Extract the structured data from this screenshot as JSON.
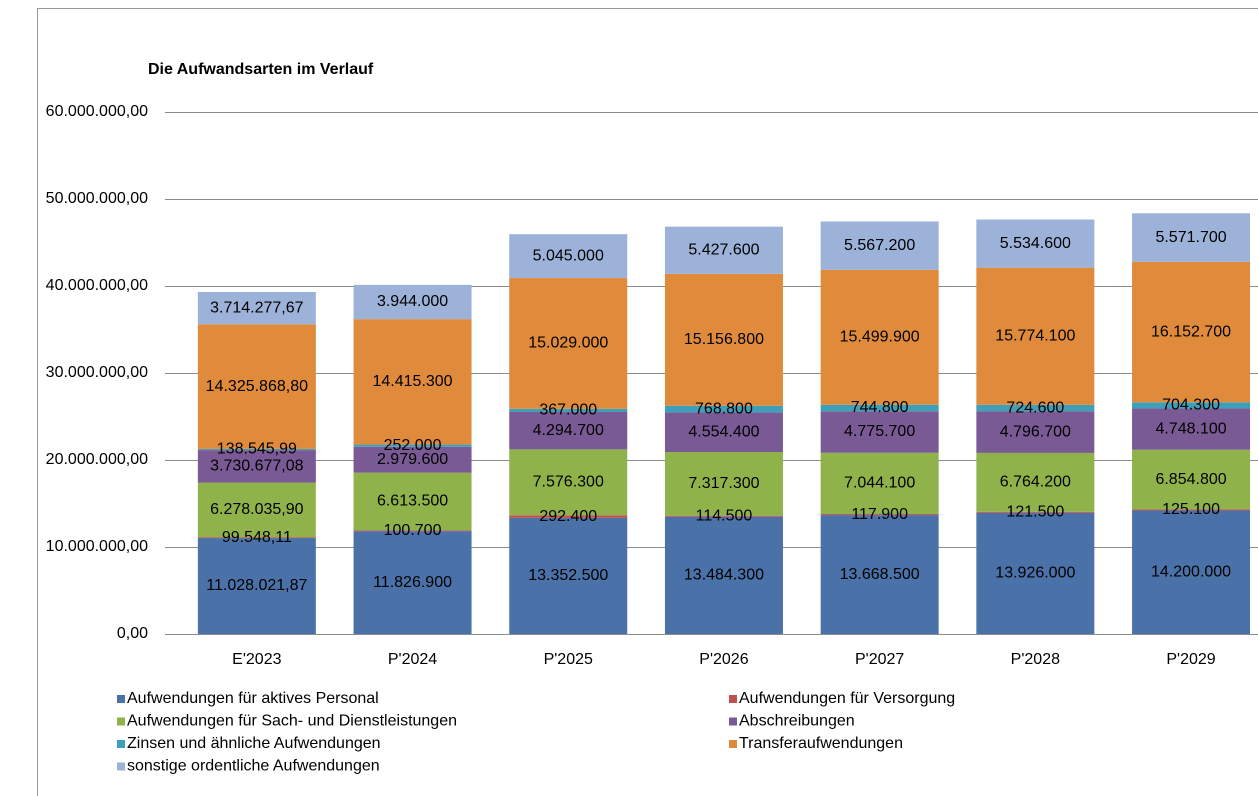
{
  "chart_data": {
    "type": "stacked_bar",
    "title": "Die Aufwandsarten im Verlauf",
    "categories": [
      "E'2023",
      "P'2024",
      "P'2025",
      "P'2026",
      "P'2027",
      "P'2028",
      "P'2029"
    ],
    "ylim": [
      0,
      60000000
    ],
    "yticks": [
      {
        "value": 0,
        "label": "0,00"
      },
      {
        "value": 10000000,
        "label": "10.000.000,00"
      },
      {
        "value": 20000000,
        "label": "20.000.000,00"
      },
      {
        "value": 30000000,
        "label": "30.000.000,00"
      },
      {
        "value": 40000000,
        "label": "40.000.000,00"
      },
      {
        "value": 50000000,
        "label": "50.000.000,00"
      },
      {
        "value": 60000000,
        "label": "60.000.000,00"
      }
    ],
    "grid": true,
    "series": [
      {
        "name": "Aufwendungen für aktives Personal",
        "color": "#4a72a8",
        "values": [
          11028021.87,
          11826900,
          13352500,
          13484300,
          13668500,
          13926000,
          14200000
        ],
        "value_labels": [
          "11.028.021,87",
          "11.826.900",
          "13.352.500",
          "13.484.300",
          "13.668.500",
          "13.926.000",
          "14.200.000"
        ]
      },
      {
        "name": "Aufwendungen für Versorgung",
        "color": "#c0504d",
        "values": [
          99548.11,
          100700,
          292400,
          114500,
          117900,
          121500,
          125100
        ],
        "value_labels": [
          "99.548,11",
          "100.700",
          "292.400",
          "114.500",
          "117.900",
          "121.500",
          "125.100"
        ]
      },
      {
        "name": "Aufwendungen für Sach- und Dienstleistungen",
        "color": "#8fb34a",
        "values": [
          6278035.9,
          6613500,
          7576300,
          7317300,
          7044100,
          6764200,
          6854800
        ],
        "value_labels": [
          "6.278.035,90",
          "6.613.500",
          "7.576.300",
          "7.317.300",
          "7.044.100",
          "6.764.200",
          "6.854.800"
        ]
      },
      {
        "name": "Abschreibungen",
        "color": "#7a5a94",
        "values": [
          3730677.08,
          2979600,
          4294700,
          4554400,
          4775700,
          4796700,
          4748100
        ],
        "value_labels": [
          "3.730.677,08",
          "2.979.600",
          "4.294.700",
          "4.554.400",
          "4.775.700",
          "4.796.700",
          "4.748.100"
        ]
      },
      {
        "name": "Zinsen und ähnliche Aufwendungen",
        "color": "#3ea0b8",
        "values": [
          138545.99,
          252000,
          367000,
          768800,
          744800,
          724600,
          704300
        ],
        "value_labels": [
          "138.545,99",
          "252.000",
          "367.000",
          "768.800",
          "744.800",
          "724.600",
          "704.300"
        ]
      },
      {
        "name": "Transferaufwendungen",
        "color": "#e08a3c",
        "values": [
          14325868.8,
          14415300,
          15029000,
          15156800,
          15499900,
          15774100,
          16152700
        ],
        "value_labels": [
          "14.325.868,80",
          "14.415.300",
          "15.029.000",
          "15.156.800",
          "15.499.900",
          "15.774.100",
          "16.152.700"
        ]
      },
      {
        "name": "sonstige ordentliche Aufwendungen",
        "color": "#9cb2d8",
        "values": [
          3714277.67,
          3944000,
          5045000,
          5427600,
          5567200,
          5534600,
          5571700
        ],
        "value_labels": [
          "3.714.277,67",
          "3.944.000",
          "5.045.000",
          "5.427.600",
          "5.567.200",
          "5.534.600",
          "5.571.700"
        ]
      }
    ]
  }
}
